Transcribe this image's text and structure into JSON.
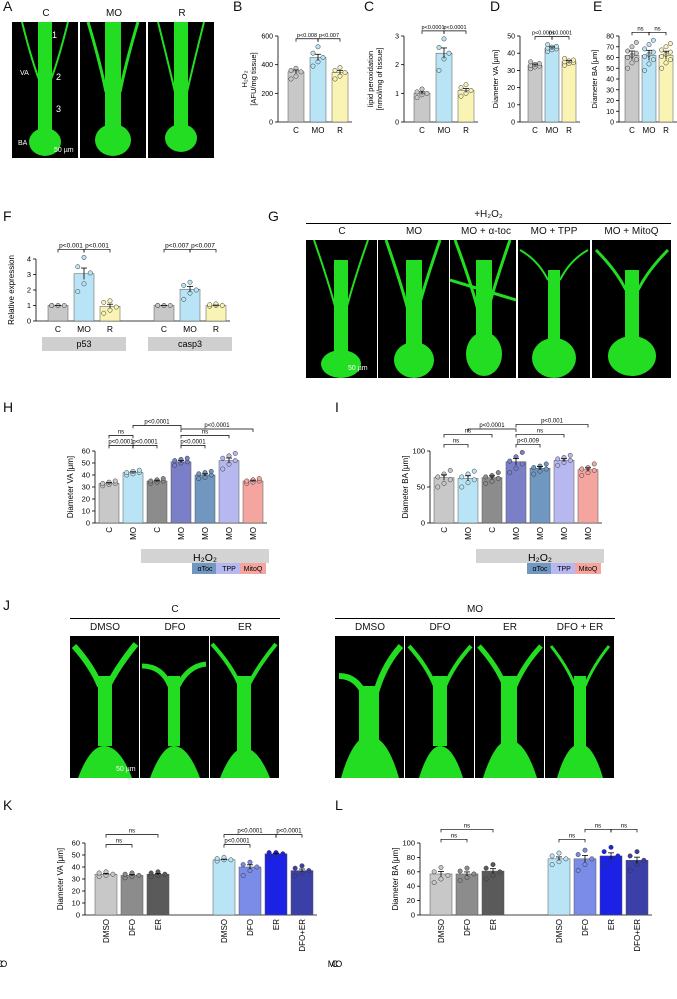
{
  "panels": {
    "A": {
      "letter": "A",
      "labels": [
        "C",
        "MO",
        "R"
      ],
      "annot": {
        "p1": "1",
        "p2": "2",
        "p3": "3",
        "va": "VA",
        "ba": "BA"
      },
      "scale": "50 µm"
    },
    "G": {
      "letter": "G",
      "header": "+H₂O₂",
      "labels": [
        "C",
        "MO",
        "MO + α-toc",
        "MO + TPP",
        "MO + MitoQ"
      ],
      "scale": "50 µm"
    },
    "J": {
      "letter": "J",
      "group_c": "C",
      "group_mo": "MO",
      "labels_c": [
        "DMSO",
        "DFO",
        "ER"
      ],
      "labels_mo": [
        "DMSO",
        "DFO",
        "ER",
        "DFO + ER"
      ],
      "scale": "50 µm"
    }
  },
  "colors": {
    "gray": "#c8c8c8",
    "lightblue": "#b8e4f5",
    "yellow": "#f9f3b4",
    "darkgray": "#8c8c8c",
    "purple": "#7b7fc7",
    "steel": "#6f97c0",
    "lavender": "#b7b8f0",
    "salmon": "#f5a5a0",
    "blue": "#1b22e6",
    "navy": "#3b3fa8",
    "periwinkle": "#7a8be8",
    "h2o2bar": "#d3d3d3",
    "green": "#22e022"
  },
  "chart_data": [
    {
      "id": "B",
      "letter": "B",
      "type": "bar",
      "categories": [
        "C",
        "MO",
        "R"
      ],
      "values": [
        350,
        450,
        345
      ],
      "ylabel": "H₂O₂\n[AFU/mg tissue]",
      "ylim": [
        0,
        600
      ],
      "yticks": [
        0,
        200,
        400,
        600
      ],
      "points": [
        [
          300,
          320,
          350,
          360,
          375
        ],
        [
          390,
          420,
          450,
          480,
          525
        ],
        [
          300,
          320,
          345,
          360,
          380
        ]
      ],
      "sig": [
        {
          "a": 0,
          "b": 1,
          "text": "p<0.008"
        },
        {
          "a": 1,
          "b": 2,
          "text": "p<0.007"
        }
      ],
      "colors": [
        "#c8c8c8",
        "#b8e4f5",
        "#f9f3b4"
      ]
    },
    {
      "id": "C",
      "letter": "C",
      "type": "bar",
      "categories": [
        "C",
        "MO",
        "R"
      ],
      "values": [
        1.0,
        2.4,
        1.1
      ],
      "ylabel": "lipid peroxidation\n[nmol/mg of tissue]",
      "ylim": [
        0,
        3
      ],
      "yticks": [
        0,
        1,
        2,
        3
      ],
      "points": [
        [
          0.85,
          0.95,
          1.0,
          1.05,
          1.15
        ],
        [
          1.8,
          2.2,
          2.4,
          2.6,
          2.9
        ],
        [
          0.9,
          1.0,
          1.1,
          1.2,
          1.3
        ]
      ],
      "sig": [
        {
          "a": 0,
          "b": 1,
          "text": "p<0.0001"
        },
        {
          "a": 1,
          "b": 2,
          "text": "p<0.0001"
        }
      ],
      "colors": [
        "#c8c8c8",
        "#b8e4f5",
        "#f9f3b4"
      ]
    },
    {
      "id": "D",
      "letter": "D",
      "type": "bar",
      "categories": [
        "C",
        "MO",
        "R"
      ],
      "values": [
        33,
        43,
        35
      ],
      "ylabel": "Diameter VA  [μm]",
      "ylim": [
        0,
        50
      ],
      "yticks": [
        0,
        10,
        20,
        30,
        40,
        50
      ],
      "points": [
        [
          31,
          32,
          32.5,
          33,
          33.5,
          34,
          35
        ],
        [
          41,
          42,
          42.5,
          43,
          43.5,
          44,
          45
        ],
        [
          33,
          34,
          34.5,
          35,
          35.5,
          36,
          37
        ]
      ],
      "sig": [
        {
          "a": 0,
          "b": 1,
          "text": "p<0.0001"
        },
        {
          "a": 1,
          "b": 2,
          "text": "p<0.0001"
        }
      ],
      "colors": [
        "#c8c8c8",
        "#b8e4f5",
        "#f9f3b4"
      ]
    },
    {
      "id": "E",
      "letter": "E",
      "type": "bar",
      "categories": [
        "C",
        "MO",
        "R"
      ],
      "values": [
        62,
        62,
        62
      ],
      "ylabel": "Diameter BA  [μm]",
      "ylim": [
        0,
        80
      ],
      "yticks": [
        0,
        10,
        20,
        30,
        40,
        50,
        60,
        70,
        80
      ],
      "points": [
        [
          50,
          55,
          58,
          60,
          62,
          64,
          66,
          70,
          74
        ],
        [
          48,
          54,
          58,
          61,
          63,
          65,
          68,
          72,
          76
        ],
        [
          50,
          55,
          58,
          61,
          63,
          65,
          67,
          70,
          73
        ]
      ],
      "sig": [
        {
          "a": 0,
          "b": 1,
          "text": "ns"
        },
        {
          "a": 1,
          "b": 2,
          "text": "ns"
        }
      ],
      "colors": [
        "#c8c8c8",
        "#b8e4f5",
        "#f9f3b4"
      ]
    },
    {
      "id": "F",
      "letter": "F",
      "type": "bar",
      "categories": [
        "C",
        "MO",
        "R",
        "C",
        "MO",
        "R"
      ],
      "values": [
        1.0,
        3.05,
        0.95,
        1.0,
        2.05,
        1.0
      ],
      "ylabel": "Relative expression",
      "ylim": [
        0,
        4
      ],
      "yticks": [
        0,
        1,
        2,
        3,
        4
      ],
      "groups": [
        "p53",
        "casp3"
      ],
      "points": [
        [
          1,
          1,
          1,
          1,
          1
        ],
        [
          1.9,
          2.4,
          3.1,
          3.5,
          4.1
        ],
        [
          0.5,
          0.7,
          0.9,
          1.2,
          1.3
        ],
        [
          1,
          1,
          1,
          1,
          1
        ],
        [
          1.4,
          1.8,
          2.0,
          2.3,
          2.5
        ],
        [
          0.95,
          1.0,
          1.0,
          1.05,
          1.1
        ]
      ],
      "sig": [
        {
          "a": 0,
          "b": 1,
          "text": "p<0.001"
        },
        {
          "a": 1,
          "b": 2,
          "text": "p<0.001"
        },
        {
          "a": 3,
          "b": 4,
          "text": "p<0.007"
        },
        {
          "a": 4,
          "b": 5,
          "text": "p<0.007"
        }
      ],
      "colors": [
        "#c8c8c8",
        "#b8e4f5",
        "#f9f3b4",
        "#c8c8c8",
        "#b8e4f5",
        "#f9f3b4"
      ]
    },
    {
      "id": "H",
      "letter": "H",
      "type": "bar",
      "categories": [
        "C",
        "MO",
        "C",
        "MO",
        "MO",
        "MO",
        "MO"
      ],
      "values": [
        33,
        42,
        35,
        51,
        40,
        52,
        35
      ],
      "ylabel": "Diameter VA  [μm]",
      "ylim": [
        0,
        60
      ],
      "yticks": [
        0,
        10,
        20,
        30,
        40,
        50,
        60
      ],
      "points": [
        [
          31,
          32,
          33,
          33,
          34,
          35
        ],
        [
          40,
          41,
          42,
          42,
          43,
          44
        ],
        [
          33,
          34,
          35,
          35,
          36,
          37
        ],
        [
          48,
          50,
          51,
          52,
          53,
          54
        ],
        [
          37,
          38,
          40,
          41,
          42,
          43
        ],
        [
          45,
          49,
          52,
          54,
          56,
          58
        ],
        [
          33,
          34,
          35,
          35,
          36,
          37
        ]
      ],
      "sig": [
        {
          "a": 0,
          "b": 1,
          "text": "ns",
          "lvl": 1
        },
        {
          "a": 1,
          "b": 2,
          "text": "p<0.0001",
          "lvl": 0
        },
        {
          "a": 0,
          "b": 1,
          "text": "p<0.0001",
          "lvl": 0
        },
        {
          "a": 1,
          "b": 3,
          "text": "p<0.0001",
          "lvl": 2
        },
        {
          "a": 3,
          "b": 4,
          "text": "p<0.0001",
          "lvl": 0
        },
        {
          "a": 3,
          "b": 5,
          "text": "ns",
          "lvl": 1
        },
        {
          "a": 3,
          "b": 6,
          "text": "p<0.0001",
          "lvl": 3
        }
      ],
      "h2o2": "H₂O₂",
      "treat": [
        "αToc",
        "TPP",
        "MitoQ"
      ],
      "colors": [
        "#c8c8c8",
        "#b8e4f5",
        "#8c8c8c",
        "#7b7fc7",
        "#6f97c0",
        "#b7b8f0",
        "#f5a5a0"
      ]
    },
    {
      "id": "I",
      "letter": "I",
      "type": "bar",
      "categories": [
        "C",
        "MO",
        "C",
        "MO",
        "MO",
        "MO",
        "MO"
      ],
      "values": [
        63,
        62,
        63,
        85,
        76,
        87,
        74
      ],
      "ylabel": "Diameter BA  [μm]",
      "ylim": [
        0,
        100
      ],
      "yticks": [
        0,
        50,
        100
      ],
      "points": [
        [
          50,
          55,
          60,
          64,
          68,
          73
        ],
        [
          50,
          56,
          60,
          64,
          68,
          72
        ],
        [
          55,
          58,
          62,
          64,
          66,
          70
        ],
        [
          70,
          76,
          82,
          86,
          92,
          98
        ],
        [
          68,
          72,
          75,
          77,
          79,
          82
        ],
        [
          80,
          84,
          87,
          89,
          91,
          94
        ],
        [
          66,
          70,
          73,
          75,
          77,
          82
        ]
      ],
      "sig": [
        {
          "a": 0,
          "b": 1,
          "text": "ns",
          "lvl": 0
        },
        {
          "a": 0,
          "b": 2,
          "text": "ns",
          "lvl": 1
        },
        {
          "a": 3,
          "b": 4,
          "text": "p<0.009",
          "lvl": 0
        },
        {
          "a": 3,
          "b": 5,
          "text": "ns",
          "lvl": 1
        },
        {
          "a": 3,
          "b": 6,
          "text": "p<0.001",
          "lvl": 2
        },
        {
          "a": 1,
          "b": 3,
          "text": "p<0.0001",
          "lvl": 3
        }
      ],
      "h2o2": "H₂O₂",
      "treat": [
        "αToc",
        "TPP",
        "MitoQ"
      ],
      "colors": [
        "#c8c8c8",
        "#b8e4f5",
        "#8c8c8c",
        "#7b7fc7",
        "#6f97c0",
        "#b7b8f0",
        "#f5a5a0"
      ]
    },
    {
      "id": "K",
      "letter": "K",
      "type": "bar",
      "categories": [
        "DMSO",
        "DFO",
        "ER",
        "DMSO",
        "DFO",
        "ER",
        "DFO+ER"
      ],
      "values": [
        34,
        33,
        34,
        46,
        40,
        51,
        37
      ],
      "ylabel": "Diameter VA  [μm]",
      "ylim": [
        0,
        60
      ],
      "yticks": [
        0,
        10,
        20,
        30,
        40,
        50,
        60
      ],
      "groups": [
        "C",
        "MO"
      ],
      "points": [
        [
          32,
          33,
          34,
          35,
          36
        ],
        [
          31,
          32,
          33,
          34,
          35
        ],
        [
          32,
          33,
          34,
          35,
          36
        ],
        [
          45,
          46,
          46,
          47,
          48
        ],
        [
          33,
          37,
          40,
          42,
          44
        ],
        [
          49,
          50,
          51,
          52,
          52
        ],
        [
          33,
          35,
          37,
          39,
          41
        ]
      ],
      "sig": [
        {
          "a": 0,
          "b": 1,
          "text": "ns",
          "lvl": 0
        },
        {
          "a": 0,
          "b": 2,
          "text": "ns",
          "lvl": 1
        },
        {
          "a": 3,
          "b": 4,
          "text": "p<0.0001",
          "lvl": 0
        },
        {
          "a": 3,
          "b": 5,
          "text": "p<0.0001",
          "lvl": 1
        },
        {
          "a": 5,
          "b": 6,
          "text": "p<0.0001",
          "lvl": 1
        }
      ],
      "colors": [
        "#c8c8c8",
        "#8c8c8c",
        "#5a5a5a",
        "#b8e4f5",
        "#7a8be8",
        "#1b22e6",
        "#3b3fa8"
      ]
    },
    {
      "id": "L",
      "letter": "L",
      "type": "bar",
      "categories": [
        "DMSO",
        "DFO",
        "ER",
        "DMSO",
        "DFO",
        "ER",
        "DFO+ER"
      ],
      "values": [
        57,
        57,
        61,
        78,
        78,
        82,
        76
      ],
      "ylabel": "Diameter BA  [μm]",
      "ylim": [
        0,
        100
      ],
      "yticks": [
        0,
        20,
        40,
        60,
        80,
        100
      ],
      "groups": [
        "C",
        "MO"
      ],
      "points": [
        [
          45,
          50,
          55,
          60,
          66
        ],
        [
          48,
          52,
          57,
          61,
          65
        ],
        [
          50,
          55,
          60,
          65,
          70
        ],
        [
          70,
          74,
          78,
          82,
          86
        ],
        [
          62,
          70,
          78,
          84,
          90
        ],
        [
          68,
          76,
          82,
          88,
          94
        ],
        [
          62,
          70,
          76,
          82,
          88
        ]
      ],
      "sig": [
        {
          "a": 0,
          "b": 1,
          "text": "ns",
          "lvl": 0
        },
        {
          "a": 0,
          "b": 2,
          "text": "ns",
          "lvl": 1
        },
        {
          "a": 3,
          "b": 4,
          "text": "ns",
          "lvl": 0
        },
        {
          "a": 4,
          "b": 5,
          "text": "ns",
          "lvl": 1
        },
        {
          "a": 5,
          "b": 6,
          "text": "ns",
          "lvl": 1
        }
      ],
      "colors": [
        "#c8c8c8",
        "#8c8c8c",
        "#5a5a5a",
        "#b8e4f5",
        "#7a8be8",
        "#1b22e6",
        "#3b3fa8"
      ]
    }
  ]
}
